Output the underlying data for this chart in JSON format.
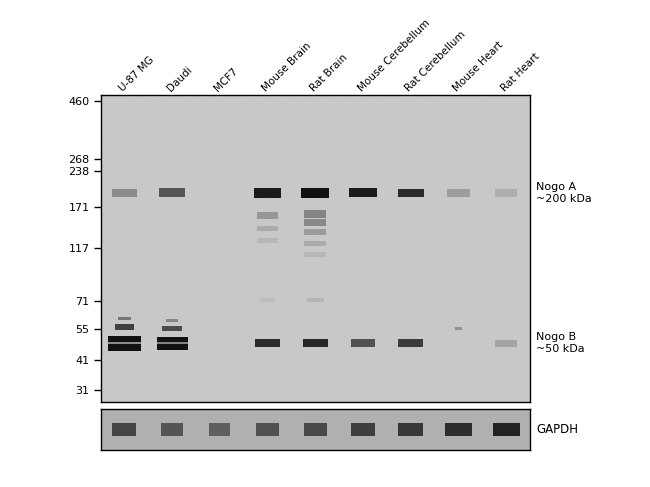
{
  "lane_labels": [
    "U-87 MG",
    "Daudi",
    "MCF7",
    "Mouse Brain",
    "Rat Brain",
    "Mouse Cerebellum",
    "Rat Cerebellum",
    "Mouse Heart",
    "Rat Heart"
  ],
  "mw_markers": [
    460,
    268,
    238,
    171,
    117,
    71,
    55,
    41,
    31
  ],
  "nogo_a_annotation": "Nogo A\n~200 kDa",
  "nogo_b_annotation": "Nogo B\n~50 kDa",
  "gapdh_label": "GAPDH",
  "gel_bg": "#c8c8c8",
  "gel_bg_lower": "#b8b8b8",
  "band_dark": "#111111",
  "band_mid": "#444444",
  "band_light": "#888888",
  "band_vlight": "#aaaaaa",
  "mw_min": 31,
  "mw_max": 460
}
